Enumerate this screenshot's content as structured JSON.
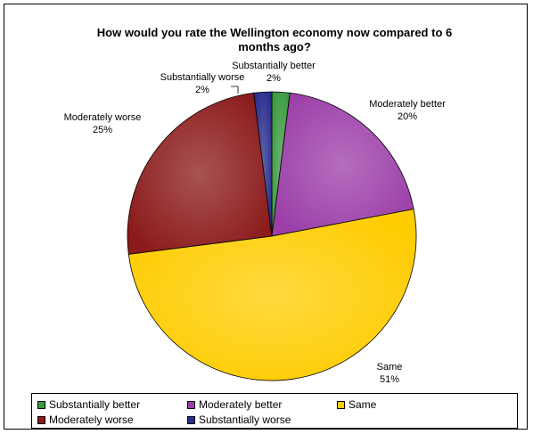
{
  "chart_data": {
    "type": "pie",
    "title": "How would you rate the Wellington economy now compared to 6 months ago?",
    "title_lines": [
      "How would you rate the Wellington economy now compared to 6",
      "months ago?"
    ],
    "categories": [
      "Substantially better",
      "Moderately better",
      "Same",
      "Moderately worse",
      "Substantially worse"
    ],
    "values": [
      2,
      20,
      51,
      25,
      2
    ],
    "value_labels": [
      "2%",
      "20%",
      "51%",
      "25%",
      "2%"
    ],
    "colors": [
      "#3a9a40",
      "#9b3ea8",
      "#ffcc00",
      "#8b1a1a",
      "#2a2d8c"
    ],
    "legend_position": "bottom",
    "grid": false
  }
}
